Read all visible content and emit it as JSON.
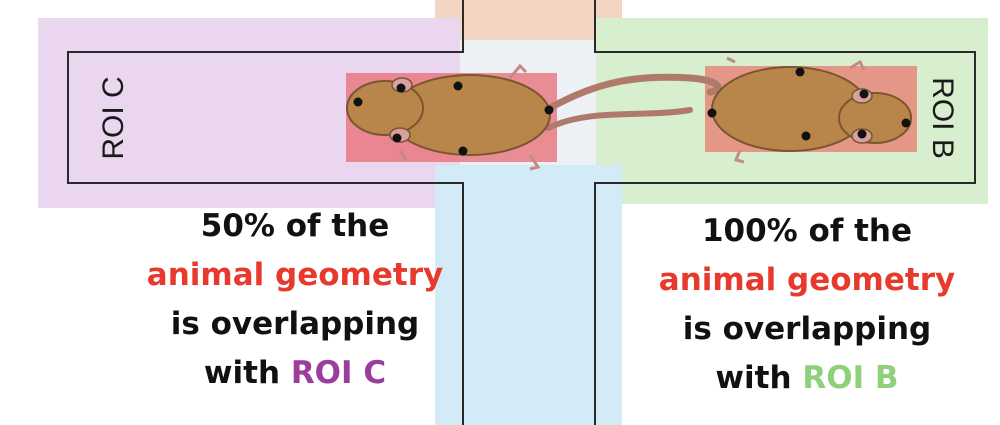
{
  "rois": {
    "left_label": "ROI C",
    "right_label": "ROI B"
  },
  "captions": {
    "left": {
      "line1": "50% of the",
      "line2": "animal geometry",
      "line3": "is overlapping",
      "line4_prefix": "with ",
      "line4_roi": "ROI C"
    },
    "right": {
      "line1": "100% of the",
      "line2": "animal geometry",
      "line3": "is overlapping",
      "line4_prefix": "with ",
      "line4_roi": "ROI B"
    }
  },
  "colors": {
    "roi_c": "#9a3d9e",
    "roi_b": "#8fd17a",
    "highlight": "#e8392d"
  }
}
